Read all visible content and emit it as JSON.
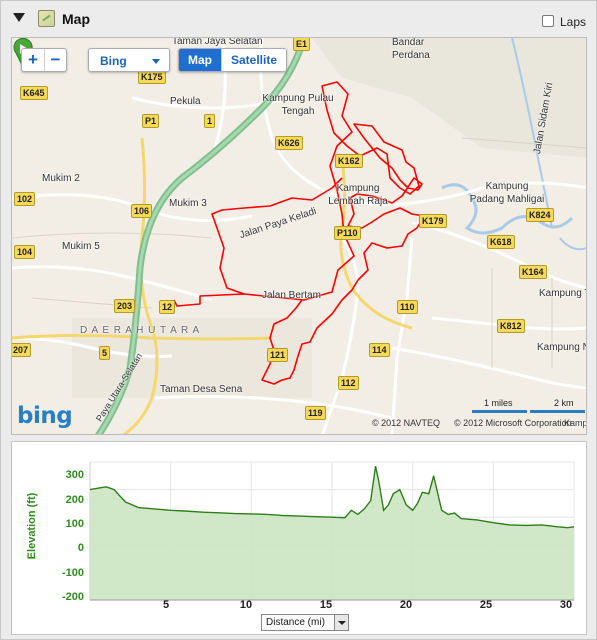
{
  "header": {
    "title": "Map",
    "laps_label": "Laps",
    "laps_checked": false
  },
  "map": {
    "zoom_in": "+",
    "zoom_out": "−",
    "provider": "Bing",
    "view_map": "Map",
    "view_satellite": "Satellite",
    "bing_logo": "bing",
    "scale_miles": "1 miles",
    "scale_km": "2 km",
    "copyright_navteq": "© 2012 NAVTEQ",
    "copyright_ms": "© 2012 Microsoft Corporation",
    "places": [
      "Taman Jaya Selatan",
      "Bandar Perdana",
      "Pekula",
      "Kampung Pulau Tengah",
      "Mukim 2",
      "Mukim 3",
      "Mukim 5",
      "Kampung Lembah Raja",
      "Jalan Paya Keladi",
      "Kampung Padang Mahligai",
      "Jalan Sidam Kiri",
      "Jalan Bertam",
      "D A E R A H   U T A R A",
      "Kampung T",
      "Kampung N",
      "Taman Desa Sena",
      "Paya Utara-Selatan",
      "Kamp"
    ],
    "shields": [
      "E1",
      "K175",
      "K645",
      "P1",
      "1",
      "K626",
      "K162",
      "102",
      "106",
      "104",
      "P110",
      "K179",
      "K824",
      "K618",
      "K164",
      "203",
      "12",
      "110",
      "K812",
      "207",
      "5",
      "121",
      "114",
      "112",
      "119"
    ],
    "colors": {
      "route": "#ff0000",
      "water": "#a9cbe8",
      "highway": "#7fc08d",
      "road": "#ffffff"
    }
  },
  "elevation": {
    "y_title": "Elevation (ft)",
    "x_selector": "Distance (mi)",
    "colors": {
      "line": "#2e7d19",
      "fill": "#cbe5c1",
      "axis_text": "#2e8b1e"
    }
  },
  "chart_data": {
    "type": "area",
    "title": "",
    "xlabel": "Distance (mi)",
    "ylabel": "Elevation (ft)",
    "xlim": [
      0,
      30
    ],
    "ylim": [
      -200,
      300
    ],
    "x_ticks": [
      "5",
      "10",
      "15",
      "20",
      "25",
      "30"
    ],
    "y_ticks": [
      "300",
      "200",
      "100",
      "0",
      "-100",
      "-200"
    ],
    "series": [
      {
        "x": [
          0.0,
          0.5,
          1.0,
          1.5,
          1.8,
          2.2,
          2.6,
          3.0,
          4.0,
          5.0,
          6.0,
          7.0,
          8.0,
          9.0,
          10.0,
          11.0,
          12.0,
          13.0,
          14.0,
          15.0,
          15.8,
          16.2,
          16.6,
          17.0,
          17.4,
          17.7,
          17.9,
          18.2,
          18.5,
          18.8,
          19.2,
          19.6,
          20.0,
          20.3,
          20.6,
          21.0,
          21.3,
          21.5,
          21.8,
          22.2,
          22.6,
          23.0,
          24.0,
          25.0,
          26.0,
          27.0,
          28.0,
          29.0,
          29.6,
          30.0
        ],
        "y": [
          200,
          205,
          210,
          200,
          180,
          155,
          145,
          135,
          130,
          125,
          122,
          118,
          116,
          113,
          112,
          110,
          106,
          104,
          102,
          100,
          98,
          125,
          110,
          130,
          160,
          285,
          230,
          125,
          145,
          185,
          200,
          145,
          125,
          150,
          190,
          185,
          250,
          200,
          125,
          110,
          115,
          95,
          90,
          80,
          72,
          70,
          72,
          65,
          62,
          65
        ]
      }
    ]
  }
}
